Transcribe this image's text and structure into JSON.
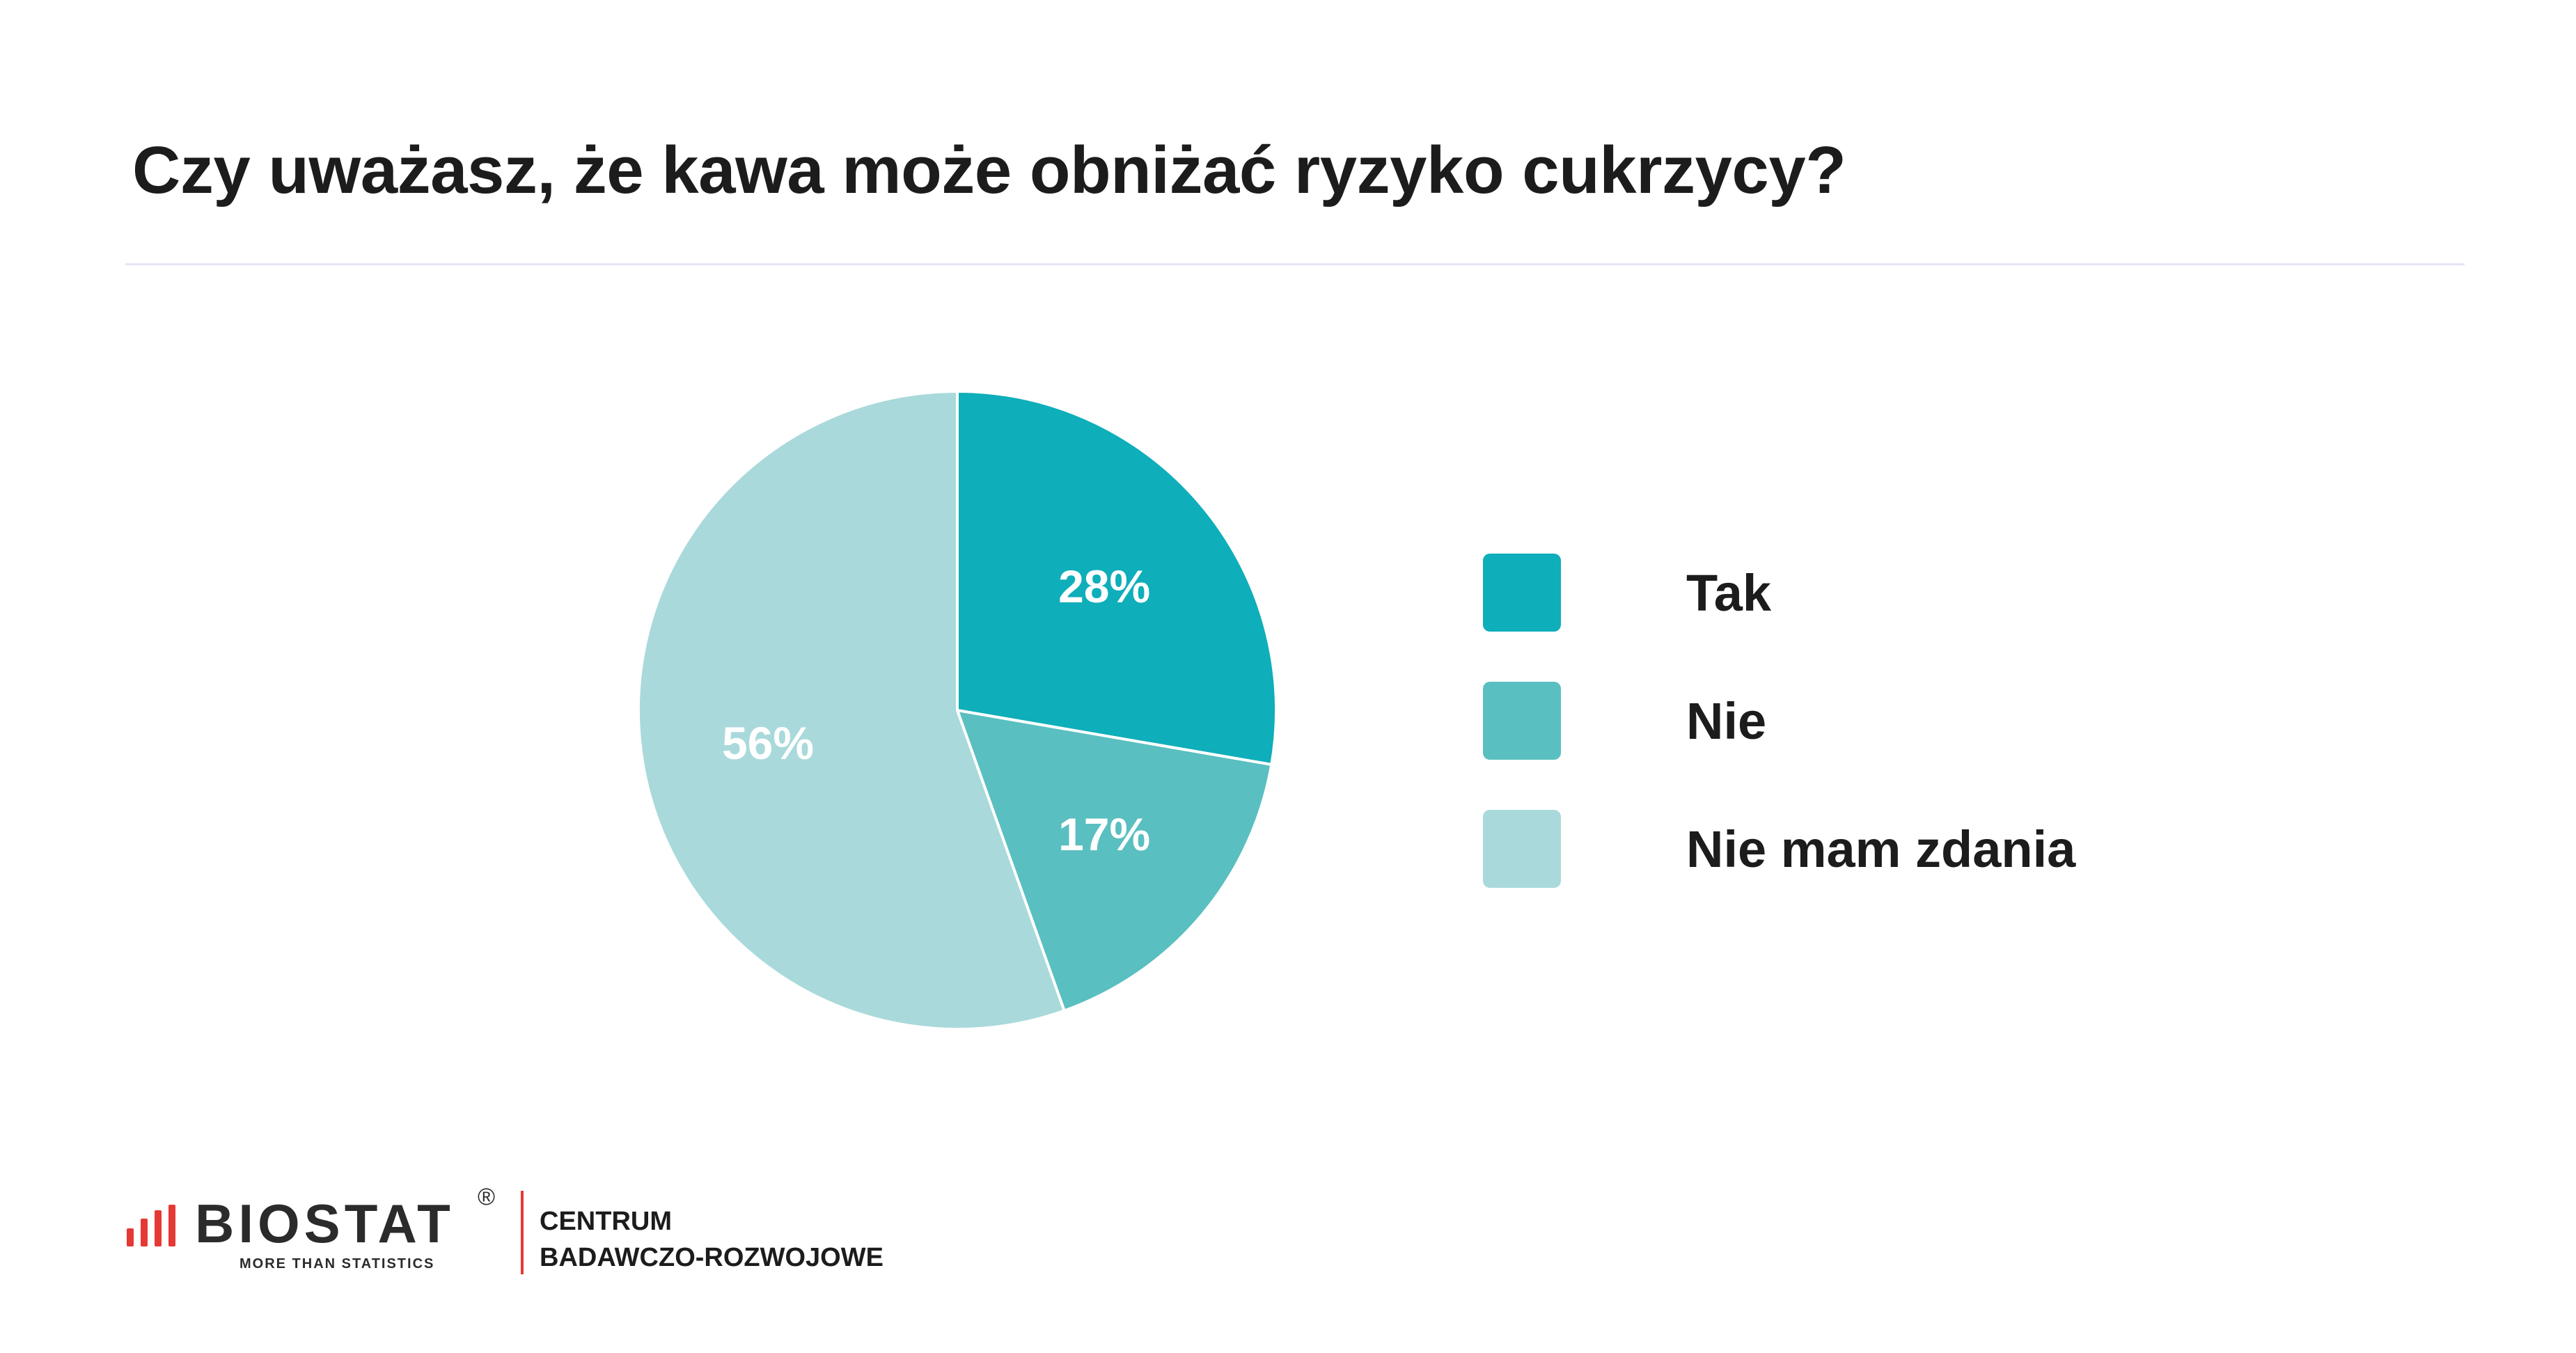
{
  "header": {
    "title": "Czy uważasz, że kawa może obniżać ryzyko cukrzycy?"
  },
  "chart_data": {
    "type": "pie",
    "categories": [
      "Tak",
      "Nie",
      "Nie mam zdania"
    ],
    "values": [
      28,
      17,
      56
    ],
    "labels": [
      "28%",
      "17%",
      "56%"
    ],
    "colors": [
      "#0eaeba",
      "#5abfc0",
      "#a9d9db"
    ],
    "legend": "right"
  },
  "footer": {
    "logo_text": "BIOSTAT",
    "logo_registered": "®",
    "logo_tagline": "MORE THAN STATISTICS",
    "center_line1": "CENTRUM",
    "center_line2": "BADAWCZO-ROZWOJOWE",
    "logo_bar_colors": [
      "#e53935",
      "#e53935",
      "#e53935",
      "#e53935"
    ]
  }
}
